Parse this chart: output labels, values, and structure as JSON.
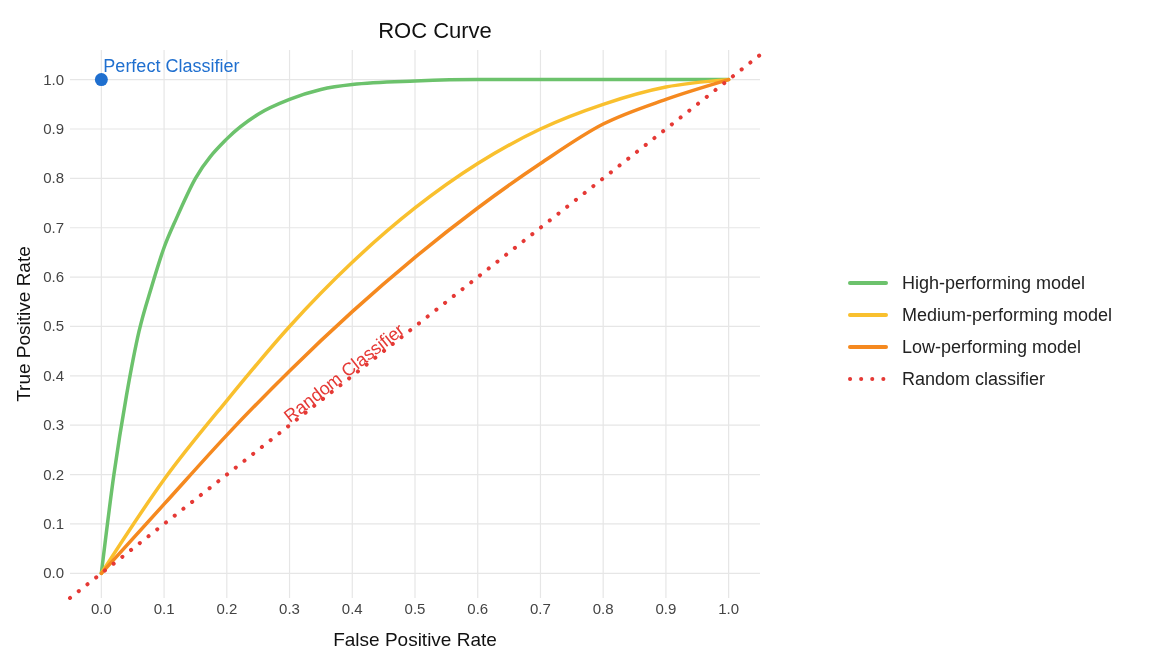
{
  "chart_data": {
    "type": "line",
    "title": "ROC Curve",
    "xlabel": "False Positive Rate",
    "ylabel": "True Positive Rate",
    "xlim": [
      -0.05,
      1.05
    ],
    "ylim": [
      -0.05,
      1.06
    ],
    "xticks": [
      {
        "value": 0,
        "label": "0.0"
      },
      0.1,
      0.2,
      0.3,
      0.4,
      0.5,
      0.6,
      0.7,
      0.8,
      0.9,
      {
        "value": 1,
        "label": "1.0"
      }
    ],
    "yticks": [
      {
        "value": 0,
        "label": "0.0"
      },
      0.1,
      0.2,
      0.3,
      0.4,
      0.5,
      0.6,
      0.7,
      0.8,
      0.9,
      {
        "value": 1,
        "label": "1.0"
      }
    ],
    "grid": true,
    "legend": "right",
    "series": [
      {
        "name": "High-performing model",
        "color": "#6cc26c",
        "line_style": "solid",
        "x": [
          0,
          0.02,
          0.04,
          0.06,
          0.08,
          0.1,
          0.12,
          0.15,
          0.2,
          0.25,
          0.3,
          0.35,
          0.4,
          0.5,
          0.6,
          0.8,
          1
        ],
        "values": [
          0,
          0.2,
          0.36,
          0.49,
          0.58,
          0.66,
          0.72,
          0.8,
          0.88,
          0.93,
          0.96,
          0.98,
          0.99,
          0.997,
          1,
          1,
          1
        ]
      },
      {
        "name": "Medium-performing model",
        "color": "#f9c02e",
        "line_style": "solid",
        "x": [
          0,
          0.1,
          0.2,
          0.3,
          0.4,
          0.5,
          0.6,
          0.7,
          0.8,
          0.9,
          1
        ],
        "values": [
          0,
          0.19,
          0.35,
          0.5,
          0.63,
          0.74,
          0.83,
          0.9,
          0.95,
          0.985,
          1
        ]
      },
      {
        "name": "Low-performing model",
        "color": "#f5891f",
        "line_style": "solid",
        "x": [
          0,
          0.1,
          0.2,
          0.3,
          0.4,
          0.5,
          0.6,
          0.7,
          0.8,
          0.9,
          1
        ],
        "values": [
          0,
          0.14,
          0.28,
          0.41,
          0.53,
          0.64,
          0.74,
          0.83,
          0.91,
          0.96,
          1
        ]
      },
      {
        "name": "Random classifier",
        "color": "#e53935",
        "line_style": "dotted",
        "x": [
          -0.05,
          1.05
        ],
        "values": [
          -0.05,
          1.05
        ]
      },
      {
        "type": "scatter",
        "color": "#1f6fcf",
        "marker": "circle",
        "x": [
          0
        ],
        "values": [
          1
        ]
      }
    ],
    "annotations": [
      {
        "text": "Perfect Classifier",
        "x": 0,
        "y": 1
      },
      "Random Classifier"
    ]
  }
}
